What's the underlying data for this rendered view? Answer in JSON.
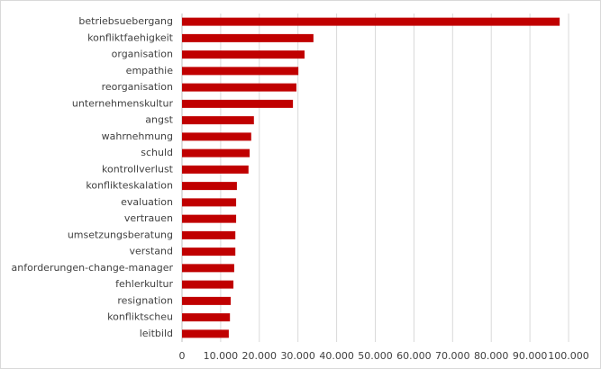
{
  "chart_data": {
    "type": "bar",
    "orientation": "horizontal",
    "categories": [
      "betriebsuebergang",
      "konfliktfaehigkeit",
      "organisation",
      "empathie",
      "reorganisation",
      "unternehmenskultur",
      "angst",
      "wahrnehmung",
      "schuld",
      "kontrollverlust",
      "konflikteskalation",
      "evaluation",
      "vertrauen",
      "umsetzungsberatung",
      "verstand",
      "anforderungen-change-manager",
      "fehlerkultur",
      "resignation",
      "konfliktscheu",
      "leitbild"
    ],
    "values": [
      97700,
      34000,
      31700,
      30100,
      29600,
      28700,
      18600,
      17900,
      17500,
      17200,
      14200,
      14000,
      14000,
      13800,
      13800,
      13500,
      13300,
      12600,
      12400,
      12100
    ],
    "color": "#c00000",
    "xlim": [
      0,
      100000
    ],
    "xticks": [
      0,
      {
        "value": 10000,
        "label": "10.000"
      },
      {
        "value": 20000,
        "label": "20.000"
      },
      {
        "value": 30000,
        "label": "30.000"
      },
      {
        "value": 40000,
        "label": "40.000"
      },
      {
        "value": 50000,
        "label": "50.000"
      },
      {
        "value": 60000,
        "label": "60.000"
      },
      {
        "value": 70000,
        "label": "70.000"
      },
      {
        "value": 80000,
        "label": "80.000"
      },
      {
        "value": 90000,
        "label": "90.000"
      },
      {
        "value": 100000,
        "label": "100.000"
      }
    ],
    "grid": true
  }
}
